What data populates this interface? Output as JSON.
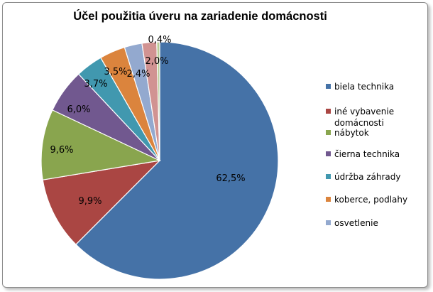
{
  "chart_data": {
    "type": "pie",
    "title": "Účel použitia úveru na zariadenie domácnosti",
    "legend_position": "right",
    "slices": [
      {
        "name": "biela technika",
        "value": 62.5,
        "label": "62,5%",
        "color": "#4572a7"
      },
      {
        "name": "iné vybavenie domácnosti",
        "value": 9.9,
        "label": "9,9%",
        "color": "#aa4643"
      },
      {
        "name": "nábytok",
        "value": 9.6,
        "label": "9,6%",
        "color": "#89a54e"
      },
      {
        "name": "čierna technika",
        "value": 6.0,
        "label": "6,0%",
        "color": "#71588f"
      },
      {
        "name": "údržba záhrady",
        "value": 3.7,
        "label": "3,7%",
        "color": "#4198af"
      },
      {
        "name": "koberce, podlahy",
        "value": 3.5,
        "label": "3,5%",
        "color": "#db843d"
      },
      {
        "name": "osvetlenie",
        "value": 2.4,
        "label": "2,4%",
        "color": "#93a9cf"
      },
      {
        "name": "",
        "value": 2.0,
        "label": "2,0%",
        "color": "#d19392"
      },
      {
        "name": "",
        "value": 0.4,
        "label": "0,4%",
        "color": "#b9cd96"
      }
    ]
  }
}
